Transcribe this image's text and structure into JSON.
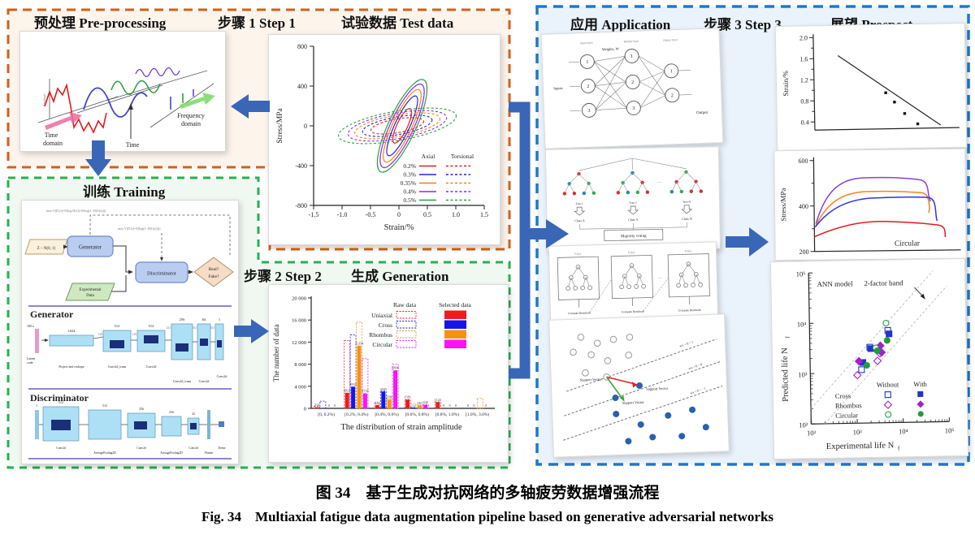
{
  "figure": {
    "caption_zh": "图 34　基于生成对抗网络的多轴疲劳数据增强流程",
    "caption_en": "Fig. 34　Multiaxial fatigue data augmentation pipeline based on generative adversarial networks"
  },
  "headers": {
    "preprocessing": "预处理 Pre-processing",
    "step1": "步骤 1 Step 1",
    "test_data": "试验数据 Test data",
    "training": "训练 Training",
    "step2": "步骤 2 Step 2",
    "generation": "生成 Generation",
    "application": "应用 Application",
    "step3": "步骤 3 Step 3",
    "prospect": "展望 Prospect"
  },
  "colors": {
    "arrow_blue": "#3a66b8",
    "box_orange": "#d2601a",
    "box_green": "#26b14e",
    "box_blue": "#1e78c8"
  },
  "preprocessing": {
    "time_domain_1": "Time",
    "time_domain_2": "domain",
    "time": "Time",
    "freq_1": "Frequency",
    "freq_2": "domain",
    "amplitude": "Amplitude"
  },
  "gan": {
    "latent": "Z ~ N(0, 1)",
    "generator": "Generator",
    "discriminator": "Discriminator",
    "real": "Real?",
    "fake": "Fake?",
    "exp_1": "Experimental",
    "exp_2": "Data",
    "loss_g": "max V(D,G)=E[log D(x)]+E[log(1−D(G(z)))]",
    "loss_d": "max V(D,G)=E[log(1−D(G(z)))]",
    "gen_title": "Generator",
    "latent_bar": "100 z",
    "latent_1": "Latent",
    "latent_2": "code",
    "gen_tops": [
      "1024",
      "512",
      "512",
      "256",
      "64",
      "1"
    ],
    "gen_sides": [
      "128",
      "128",
      "252",
      "252",
      "252"
    ],
    "gen_labels": [
      "Project and reshape",
      "Conv2d_trans",
      "Conv2d",
      "Conv2d_trans",
      "Conv2d",
      "Conv2d"
    ],
    "disc_title": "Discriminator",
    "disc_tops": [
      "1",
      "512",
      "512",
      "256",
      "256",
      "32"
    ],
    "disc_labels": [
      "Conv2d",
      "AveragePooling2D",
      "Conv2d",
      "AveragePooling2D",
      "Conv2d",
      "Flatten",
      "Dense"
    ]
  },
  "application": {
    "ann": {
      "inputs": "Inputs",
      "weights": "Weights, W",
      "output": "Output",
      "layers": [
        "Input layer",
        "Hidden layer",
        "Output layer"
      ],
      "in_nodes": [
        "1",
        "2",
        "3"
      ],
      "hid_nodes": [
        "1",
        "2",
        "3"
      ],
      "out_nodes": [
        "1",
        "2"
      ]
    },
    "forest": {
      "trees": [
        "Tree 1",
        "Tree 2",
        "Tree N"
      ],
      "classes": [
        "Class X",
        "Class Y",
        "Class N"
      ],
      "voting": "Majority voting",
      "dots": "···"
    },
    "boost": {
      "tops": [
        "F1(x)",
        "F2(x)",
        "Fn(x)"
      ],
      "residuals": "Compute Residuals",
      "dots": "···"
    },
    "svm": {
      "sv": "Support Vector",
      "l1": "wx + b = 1",
      "l0": "wx + b = 0",
      "lm1": "wx + b = −1"
    }
  },
  "chart_data": [
    {
      "type": "line",
      "name": "test-data-hysteresis",
      "xlabel": "Strain/%",
      "ylabel": "Stress/MPa",
      "xlim": [
        -1.5,
        1.5
      ],
      "ylim": [
        -800,
        800
      ],
      "xticks": [
        "-1.5",
        "-1.0",
        "-0.5",
        "0",
        "0.5",
        "1.0",
        "1.5"
      ],
      "yticks": [
        "800",
        "400",
        "0",
        "-400",
        "-800"
      ],
      "legend_axial": "Axial",
      "legend_torsional": "Torsional",
      "series": [
        {
          "label": "0.2%",
          "color": "#e31a1c",
          "axial_peak_mpa": 190,
          "torsional_strain_width": 0.47
        },
        {
          "label": "0.3%",
          "color": "#2222cc",
          "axial_peak_mpa": 330,
          "torsional_strain_width": 0.62
        },
        {
          "label": "0.35%",
          "color": "#f57f17",
          "axial_peak_mpa": 400,
          "torsional_strain_width": 0.76
        },
        {
          "label": "0.4%",
          "color": "#8a2be2",
          "axial_peak_mpa": 460,
          "torsional_strain_width": 0.88
        },
        {
          "label": "0.5%",
          "color": "#2e9e3f",
          "axial_peak_mpa": 510,
          "torsional_strain_width": 1.05
        }
      ]
    },
    {
      "type": "bar",
      "name": "generation-distribution",
      "xlabel": "The distribution of strain amplitude",
      "ylabel": "The number of data",
      "ylim": [
        0,
        20000
      ],
      "yticks": [
        "0",
        "4 000",
        "8 000",
        "12 000",
        "16 000",
        "20 000"
      ],
      "categories": [
        "[0, 0.2%)",
        "[0.2%, 0.4%)",
        "[0.4%, 0.6%)",
        "[0.6%, 0.8%)",
        "[0.8%, 1.0%)",
        "[1.0%, 3.0%)"
      ],
      "legend": {
        "raw": "Raw data",
        "selected": "Selected data",
        "rows": [
          "Uniaxial",
          "Cross",
          "Rhombus",
          "Circular"
        ]
      },
      "colors": {
        "Uniaxial": "#ee1c1c",
        "Cross": "#1515e8",
        "Rhombus": "#f59116",
        "Circular": "#fb12fb"
      },
      "raw_series": [
        {
          "name": "Uniaxial",
          "values": [
            350,
            12300,
            900,
            1600,
            1150,
            0
          ]
        },
        {
          "name": "Cross",
          "values": [
            1300,
            13300,
            3100,
            150,
            0,
            0
          ]
        },
        {
          "name": "Rhombus",
          "values": [
            0,
            15600,
            1700,
            600,
            0,
            1800
          ]
        },
        {
          "name": "Circular",
          "values": [
            0,
            9000,
            8000,
            700,
            0,
            0
          ]
        }
      ],
      "selected_series": [
        {
          "name": "Uniaxial",
          "values": [
            214,
            2821,
            611,
            1581,
            1122,
            0
          ]
        },
        {
          "name": "Cross",
          "values": [
            0,
            3933,
            3045,
            122,
            0,
            0
          ]
        },
        {
          "name": "Rhombus",
          "values": [
            0,
            11354,
            1588,
            540,
            0,
            0
          ]
        },
        {
          "name": "Circular",
          "values": [
            0,
            2716,
            6896,
            640,
            0,
            0
          ]
        }
      ]
    },
    {
      "type": "line",
      "name": "strain-life",
      "ylabel": "Strain/%",
      "yticks": [
        "2.0",
        "1.6",
        "1.2",
        "0.8",
        "0.4"
      ],
      "line": [
        [
          0.17,
          1.65
        ],
        [
          0.88,
          0.3
        ]
      ],
      "points": [
        [
          0.5,
          0.93
        ],
        [
          0.56,
          0.75
        ],
        [
          0.63,
          0.53
        ],
        [
          0.72,
          0.33
        ]
      ]
    },
    {
      "type": "line",
      "name": "cyclic-stress-curves",
      "ylabel": "Stress/MPa",
      "yticks": [
        "600",
        "400",
        "200"
      ],
      "ylim": [
        200,
        600
      ],
      "annotation": "Circular",
      "series": [
        {
          "color": "#8b3fd9",
          "peak_mpa": 505
        },
        {
          "color": "#f5821f",
          "peak_mpa": 455
        },
        {
          "color": "#3333dd",
          "peak_mpa": 425
        },
        {
          "color": "#e31a1c",
          "peak_mpa": 285
        }
      ]
    },
    {
      "type": "scatter",
      "name": "life-prediction",
      "xlabel": "Experimental life N",
      "xlabel_sub": "f",
      "ylabel": "Predicted life N",
      "ylabel_sub": "f",
      "xlim": [
        100,
        100000
      ],
      "ylim": [
        100,
        100000
      ],
      "xticks": [
        "10²",
        "10³",
        "10⁴",
        "10⁵"
      ],
      "yticks": [
        "10⁵",
        "10⁴",
        "10³",
        "10²"
      ],
      "ann_model": "ANN model",
      "band_label": "2-factor band",
      "band_factor": 2,
      "legend": {
        "without": "Without",
        "with": "With",
        "rows": [
          {
            "label": "Cross",
            "color": "#2233cc"
          },
          {
            "label": "Rhombus",
            "color": "#a022cc"
          },
          {
            "label": "Circular",
            "color": "#1f9d3a"
          }
        ]
      },
      "series": [
        {
          "name": "Cross without",
          "marker": "square",
          "filled": false,
          "color": "#2233cc",
          "points": [
            [
              1300,
              1150
            ],
            [
              2000,
              3200
            ],
            [
              5000,
              6800
            ]
          ]
        },
        {
          "name": "Cross with",
          "marker": "square",
          "filled": true,
          "color": "#2233cc",
          "points": [
            [
              1400,
              1600
            ],
            [
              2100,
              3000
            ],
            [
              5300,
              5800
            ]
          ]
        },
        {
          "name": "Rhombus without",
          "marker": "diamond",
          "filled": false,
          "color": "#a022cc",
          "points": [
            [
              1050,
              900
            ],
            [
              2900,
              1700
            ],
            [
              3300,
              2400
            ]
          ]
        },
        {
          "name": "Rhombus with",
          "marker": "diamond",
          "filled": true,
          "color": "#a022cc",
          "points": [
            [
              1150,
              1700
            ],
            [
              3400,
              3400
            ],
            [
              3600,
              2500
            ]
          ]
        },
        {
          "name": "Circular without",
          "marker": "circle",
          "filled": false,
          "color": "#1f9d3a",
          "points": [
            [
              2700,
              3100
            ],
            [
              4600,
              9500
            ]
          ]
        },
        {
          "name": "Circular with",
          "marker": "circle",
          "filled": true,
          "color": "#1f9d3a",
          "points": [
            [
              1700,
              1400
            ],
            [
              2900,
              2700
            ],
            [
              4800,
              4300
            ]
          ]
        }
      ]
    }
  ]
}
